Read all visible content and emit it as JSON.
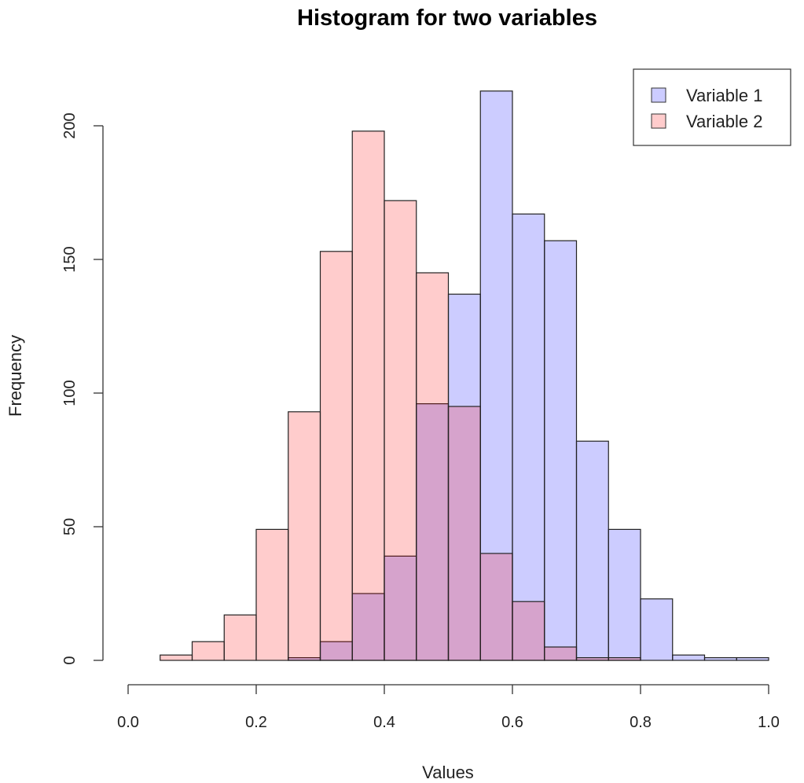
{
  "chart_data": {
    "type": "bar",
    "subtype": "overlapping-histogram",
    "title": "Histogram for two variables",
    "xlabel": "Values",
    "ylabel": "Frequency",
    "xlim": [
      0.0,
      1.0
    ],
    "ylim": [
      0,
      200
    ],
    "xticks": [
      "0.0",
      "0.2",
      "0.4",
      "0.6",
      "0.8",
      "1.0"
    ],
    "yticks": [
      "0",
      "50",
      "100",
      "150",
      "200"
    ],
    "grid": false,
    "legend_position": "top-right",
    "bin_width": 0.05,
    "series": [
      {
        "name": "Variable 1",
        "color": "#ccccff",
        "bins": [
          {
            "x0": 0.25,
            "x1": 0.3,
            "count": 1
          },
          {
            "x0": 0.3,
            "x1": 0.35,
            "count": 7
          },
          {
            "x0": 0.35,
            "x1": 0.4,
            "count": 25
          },
          {
            "x0": 0.4,
            "x1": 0.45,
            "count": 39
          },
          {
            "x0": 0.45,
            "x1": 0.5,
            "count": 96
          },
          {
            "x0": 0.5,
            "x1": 0.55,
            "count": 137
          },
          {
            "x0": 0.55,
            "x1": 0.6,
            "count": 213
          },
          {
            "x0": 0.6,
            "x1": 0.65,
            "count": 167
          },
          {
            "x0": 0.65,
            "x1": 0.7,
            "count": 157
          },
          {
            "x0": 0.7,
            "x1": 0.75,
            "count": 82
          },
          {
            "x0": 0.75,
            "x1": 0.8,
            "count": 49
          },
          {
            "x0": 0.8,
            "x1": 0.85,
            "count": 23
          },
          {
            "x0": 0.85,
            "x1": 0.9,
            "count": 2
          },
          {
            "x0": 0.9,
            "x1": 0.95,
            "count": 1
          },
          {
            "x0": 0.95,
            "x1": 1.0,
            "count": 1
          }
        ]
      },
      {
        "name": "Variable 2",
        "color": "#ffcccc",
        "bins": [
          {
            "x0": 0.05,
            "x1": 0.1,
            "count": 2
          },
          {
            "x0": 0.1,
            "x1": 0.15,
            "count": 7
          },
          {
            "x0": 0.15,
            "x1": 0.2,
            "count": 17
          },
          {
            "x0": 0.2,
            "x1": 0.25,
            "count": 49
          },
          {
            "x0": 0.25,
            "x1": 0.3,
            "count": 93
          },
          {
            "x0": 0.3,
            "x1": 0.35,
            "count": 153
          },
          {
            "x0": 0.35,
            "x1": 0.4,
            "count": 198
          },
          {
            "x0": 0.4,
            "x1": 0.45,
            "count": 172
          },
          {
            "x0": 0.45,
            "x1": 0.5,
            "count": 145
          },
          {
            "x0": 0.5,
            "x1": 0.55,
            "count": 95
          },
          {
            "x0": 0.55,
            "x1": 0.6,
            "count": 40
          },
          {
            "x0": 0.6,
            "x1": 0.65,
            "count": 22
          },
          {
            "x0": 0.65,
            "x1": 0.7,
            "count": 5
          },
          {
            "x0": 0.7,
            "x1": 0.75,
            "count": 1
          },
          {
            "x0": 0.75,
            "x1": 0.8,
            "count": 1
          }
        ]
      }
    ],
    "overlap_color": "#d4a2cc"
  }
}
